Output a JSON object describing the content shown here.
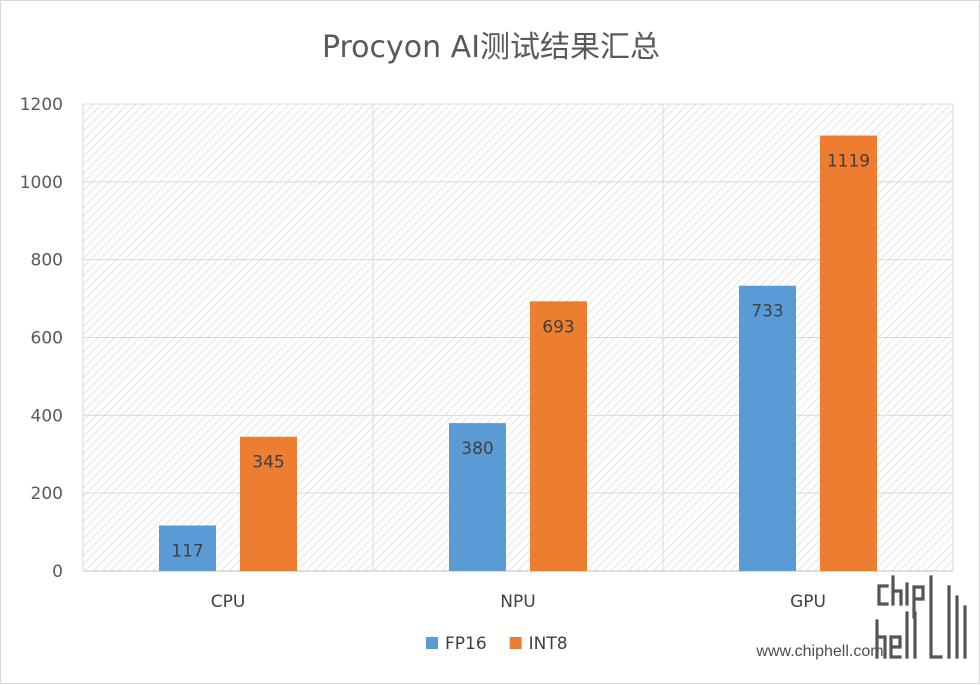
{
  "chart_data": {
    "type": "bar",
    "title": "Procyon AI测试结果汇总",
    "categories": [
      "CPU",
      "NPU",
      "GPU"
    ],
    "series": [
      {
        "name": "FP16",
        "values": [
          117,
          380,
          733
        ],
        "color": "#5b9bd5"
      },
      {
        "name": "INT8",
        "values": [
          345,
          693,
          1119
        ],
        "color": "#ed7d31"
      }
    ],
    "ylim": [
      0,
      1200
    ],
    "yticks": [
      0,
      200,
      400,
      600,
      800,
      1000,
      1200
    ],
    "grid": true,
    "legend": "bottom-center",
    "background": "diagonal-hatch"
  },
  "watermark": {
    "logo_text": "chiphell",
    "url": "www.chiphell.com"
  }
}
